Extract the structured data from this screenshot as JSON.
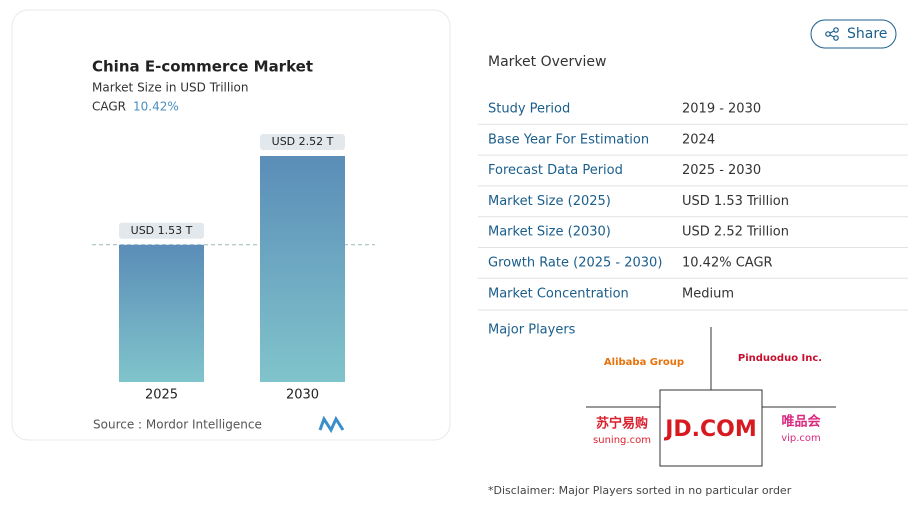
{
  "share": "Share",
  "chart_data": {
    "type": "bar",
    "title": "China E-commerce Market",
    "subtitle": "Market Size in USD Trillion",
    "cagr_label": "CAGR",
    "cagr_value": "10.42%",
    "categories": [
      "2025",
      "2030"
    ],
    "values": [
      1.53,
      2.52
    ],
    "value_labels": [
      "USD 1.53 T",
      "USD 2.52 T"
    ],
    "source": "Source :  Mordor Intelligence"
  },
  "overview": {
    "title": "Market Overview",
    "rows": [
      [
        "Study Period",
        "2019 - 2030"
      ],
      [
        "Base Year For Estimation",
        "2024"
      ],
      [
        "Forecast Data Period",
        "2025 - 2030"
      ],
      [
        "Market Size (2025)",
        "USD 1.53 Trillion"
      ],
      [
        "Market Size (2030)",
        "USD 2.52 Trillion"
      ],
      [
        "Growth Rate (2025 - 2030)",
        "10.42% CAGR"
      ],
      [
        "Market Concentration",
        "Medium"
      ]
    ]
  },
  "players": {
    "title": "Major Players",
    "logos": [
      {
        "name": "Alibaba Group"
      },
      {
        "name": "Pinduoduo Inc."
      },
      {
        "name": "苏宁易购",
        "sub": "suning.com"
      },
      {
        "name": "JD.COM"
      },
      {
        "name": "唯品会",
        "sub": "vip.com"
      }
    ],
    "disclaimer": "*Disclaimer: Major Players sorted in no particular order"
  }
}
